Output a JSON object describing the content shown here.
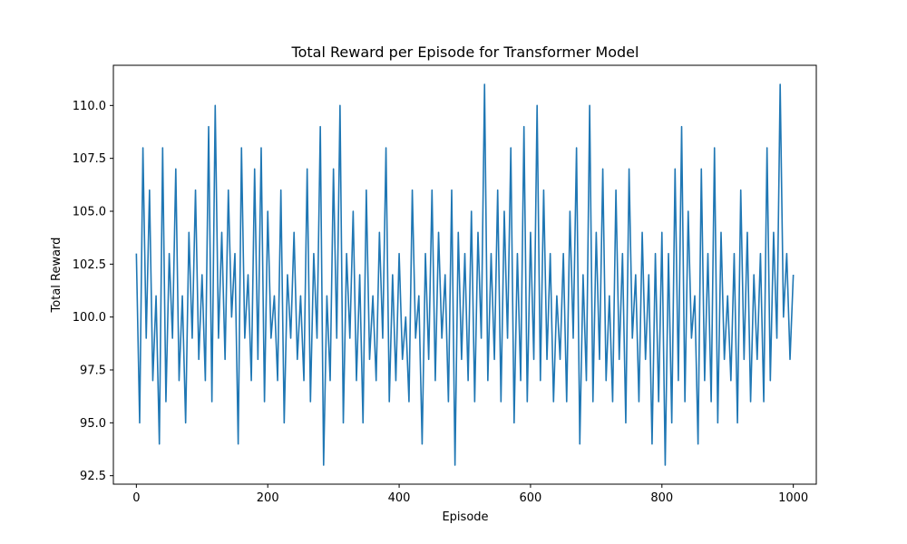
{
  "chart_data": {
    "type": "line",
    "title": "Total Reward per Episode for Transformer Model",
    "xlabel": "Episode",
    "ylabel": "Total Reward",
    "xlim": [
      -35,
      1035
    ],
    "ylim": [
      92.1,
      111.9
    ],
    "xticks": [
      0,
      200,
      400,
      600,
      800,
      1000
    ],
    "xtick_labels": [
      "0",
      "200",
      "400",
      "600",
      "800",
      "1000"
    ],
    "yticks": [
      92.5,
      95.0,
      97.5,
      100.0,
      102.5,
      105.0,
      107.5,
      110.0
    ],
    "ytick_labels": [
      "92.5",
      "95.0",
      "97.5",
      "100.0",
      "102.5",
      "105.0",
      "107.5",
      "110.0"
    ],
    "grid": false,
    "series": [
      {
        "color": "#1f77b4",
        "x": [
          0,
          5,
          10,
          15,
          20,
          25,
          30,
          35,
          40,
          45,
          50,
          55,
          60,
          65,
          70,
          75,
          80,
          85,
          90,
          95,
          100,
          105,
          110,
          115,
          120,
          125,
          130,
          135,
          140,
          145,
          150,
          155,
          160,
          165,
          170,
          175,
          180,
          185,
          190,
          195,
          200,
          205,
          210,
          215,
          220,
          225,
          230,
          235,
          240,
          245,
          250,
          255,
          260,
          265,
          270,
          275,
          280,
          285,
          290,
          295,
          300,
          305,
          310,
          315,
          320,
          325,
          330,
          335,
          340,
          345,
          350,
          355,
          360,
          365,
          370,
          375,
          380,
          385,
          390,
          395,
          400,
          405,
          410,
          415,
          420,
          425,
          430,
          435,
          440,
          445,
          450,
          455,
          460,
          465,
          470,
          475,
          480,
          485,
          490,
          495,
          500,
          505,
          510,
          515,
          520,
          525,
          530,
          535,
          540,
          545,
          550,
          555,
          560,
          565,
          570,
          575,
          580,
          585,
          590,
          595,
          600,
          605,
          610,
          615,
          620,
          625,
          630,
          635,
          640,
          645,
          650,
          655,
          660,
          665,
          670,
          675,
          680,
          685,
          690,
          695,
          700,
          705,
          710,
          715,
          720,
          725,
          730,
          735,
          740,
          745,
          750,
          755,
          760,
          765,
          770,
          775,
          780,
          785,
          790,
          795,
          800,
          805,
          810,
          815,
          820,
          825,
          830,
          835,
          840,
          845,
          850,
          855,
          860,
          865,
          870,
          875,
          880,
          885,
          890,
          895,
          900,
          905,
          910,
          915,
          920,
          925,
          930,
          935,
          940,
          945,
          950,
          955,
          960,
          965,
          970,
          975,
          980,
          985,
          990,
          995,
          1000
        ],
        "y": [
          103,
          95,
          108,
          99,
          106,
          97,
          101,
          94,
          108,
          96,
          103,
          99,
          107,
          97,
          101,
          95,
          104,
          99,
          106,
          98,
          102,
          97,
          109,
          96,
          110,
          99,
          104,
          98,
          106,
          100,
          103,
          94,
          108,
          99,
          102,
          97,
          107,
          98,
          108,
          96,
          105,
          99,
          101,
          97,
          106,
          95,
          102,
          99,
          104,
          98,
          101,
          97,
          107,
          96,
          103,
          99,
          109,
          93,
          101,
          97,
          107,
          99,
          110,
          95,
          103,
          99,
          105,
          97,
          102,
          95,
          106,
          98,
          101,
          97,
          104,
          99,
          108,
          96,
          102,
          97,
          103,
          98,
          100,
          96,
          106,
          99,
          101,
          94,
          103,
          98,
          106,
          97,
          104,
          99,
          102,
          96,
          106,
          93,
          104,
          98,
          103,
          97,
          105,
          96,
          104,
          99,
          111,
          97,
          103,
          98,
          106,
          96,
          105,
          99,
          108,
          95,
          103,
          97,
          109,
          96,
          104,
          98,
          110,
          97,
          106,
          98,
          103,
          96,
          101,
          98,
          103,
          96,
          105,
          99,
          108,
          94,
          102,
          97,
          110,
          96,
          104,
          98,
          107,
          97,
          101,
          96,
          106,
          98,
          103,
          95,
          107,
          99,
          102,
          96,
          104,
          98,
          102,
          94,
          103,
          96,
          104,
          93,
          103,
          95,
          107,
          97,
          109,
          96,
          105,
          99,
          101,
          94,
          107,
          97,
          103,
          96,
          108,
          95,
          104,
          98,
          101,
          97,
          103,
          95,
          106,
          98,
          104,
          96,
          102,
          98,
          103,
          96,
          108,
          97,
          104,
          99,
          111,
          100,
          103,
          98,
          102
        ]
      }
    ]
  }
}
